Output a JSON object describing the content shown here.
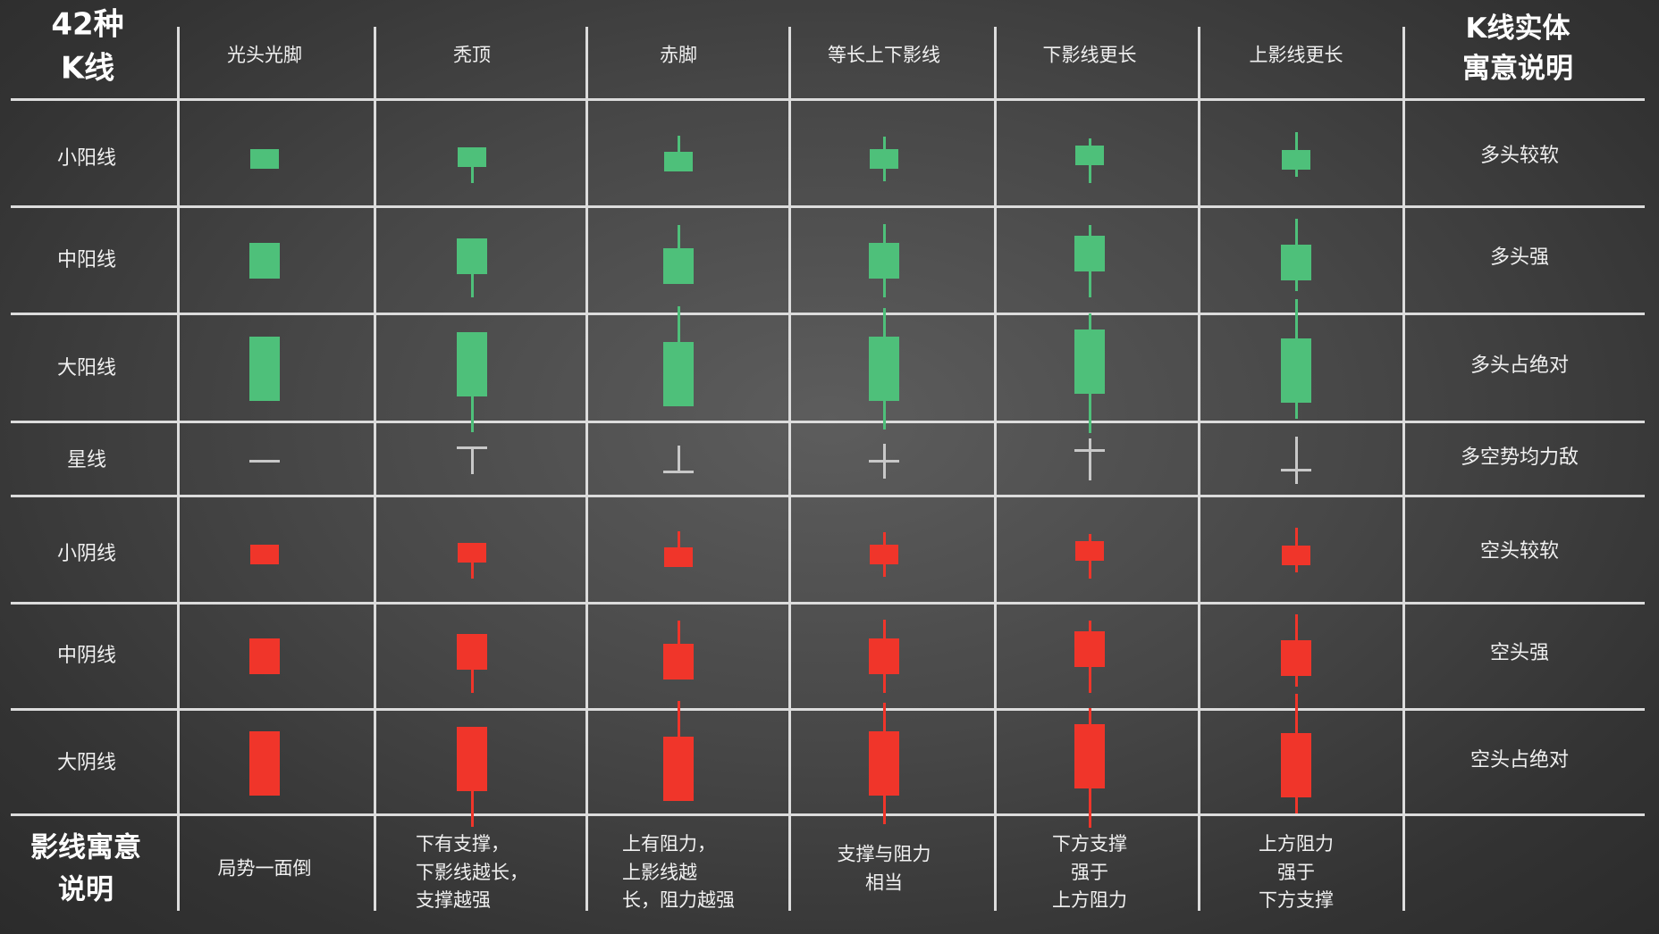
{
  "title_line1": "42种",
  "title_line2": "K线",
  "meaning_header_line1": "K线实体",
  "meaning_header_line2": "寓意说明",
  "columns": [
    "光头光脚",
    "秃顶",
    "赤脚",
    "等长上下影线",
    "下影线更长",
    "上影线更长"
  ],
  "rows": [
    {
      "label": "小阳线",
      "meaning": "多头较软",
      "color": "green",
      "size": "small"
    },
    {
      "label": "中阳线",
      "meaning": "多头强",
      "color": "green",
      "size": "medium"
    },
    {
      "label": "大阳线",
      "meaning": "多头占绝对",
      "color": "green",
      "size": "large"
    },
    {
      "label": "星线",
      "meaning": "多空势均力敌",
      "color": "gray",
      "size": "star"
    },
    {
      "label": "小阴线",
      "meaning": "空头较软",
      "color": "red",
      "size": "small"
    },
    {
      "label": "中阴线",
      "meaning": "空头强",
      "color": "red",
      "size": "medium"
    },
    {
      "label": "大阴线",
      "meaning": "空头占绝对",
      "color": "red",
      "size": "large"
    }
  ],
  "footer": {
    "head_line1": "影线寓意",
    "head_line2": "说明",
    "notes": [
      [
        "局势一面倒"
      ],
      [
        "下有支撑，",
        "下影线越长，",
        "支撑越强"
      ],
      [
        "上有阻力，",
        "上影线越",
        "长，阻力越强"
      ],
      [
        "支撑与阻力",
        "相当"
      ],
      [
        "下方支撑",
        "强于",
        "上方阻力"
      ],
      [
        "上方阻力",
        "强于",
        "下方支撑"
      ]
    ]
  },
  "colors": {
    "green": "#4ec07a",
    "red": "#f0352a",
    "star": "#c8c8c8",
    "grid": "#dcdcdc"
  }
}
